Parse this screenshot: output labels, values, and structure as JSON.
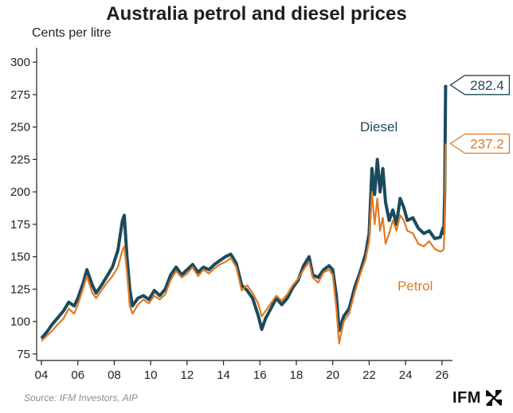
{
  "chart_data": {
    "type": "line",
    "title": "Australia petrol and diesel prices",
    "ylabel": "Cents per litre",
    "xlabel": "",
    "xlim": [
      2004,
      2026.4
    ],
    "ylim": [
      70,
      305
    ],
    "x_ticks": [
      2004,
      2006,
      2008,
      2010,
      2012,
      2014,
      2016,
      2018,
      2020,
      2022,
      2024,
      2026
    ],
    "x_tick_labels": [
      "04",
      "06",
      "08",
      "10",
      "12",
      "14",
      "16",
      "18",
      "20",
      "22",
      "24",
      "26"
    ],
    "y_ticks": [
      75,
      100,
      125,
      150,
      175,
      200,
      225,
      250,
      275,
      300
    ],
    "grid": false,
    "series": [
      {
        "name": "Diesel",
        "color": "#1b4a5c",
        "points": [
          [
            2004.0,
            87
          ],
          [
            2004.3,
            92
          ],
          [
            2004.6,
            98
          ],
          [
            2004.9,
            103
          ],
          [
            2005.2,
            108
          ],
          [
            2005.5,
            115
          ],
          [
            2005.8,
            112
          ],
          [
            2006.0,
            118
          ],
          [
            2006.3,
            130
          ],
          [
            2006.5,
            140
          ],
          [
            2006.8,
            128
          ],
          [
            2007.0,
            122
          ],
          [
            2007.3,
            128
          ],
          [
            2007.6,
            135
          ],
          [
            2007.9,
            142
          ],
          [
            2008.2,
            155
          ],
          [
            2008.45,
            178
          ],
          [
            2008.55,
            182
          ],
          [
            2008.7,
            150
          ],
          [
            2008.85,
            125
          ],
          [
            2009.0,
            112
          ],
          [
            2009.3,
            118
          ],
          [
            2009.6,
            120
          ],
          [
            2009.9,
            117
          ],
          [
            2010.2,
            124
          ],
          [
            2010.5,
            120
          ],
          [
            2010.8,
            125
          ],
          [
            2011.1,
            136
          ],
          [
            2011.4,
            142
          ],
          [
            2011.7,
            136
          ],
          [
            2012.0,
            140
          ],
          [
            2012.3,
            144
          ],
          [
            2012.6,
            138
          ],
          [
            2012.9,
            142
          ],
          [
            2013.2,
            140
          ],
          [
            2013.5,
            144
          ],
          [
            2013.8,
            147
          ],
          [
            2014.1,
            150
          ],
          [
            2014.4,
            152
          ],
          [
            2014.7,
            145
          ],
          [
            2015.0,
            128
          ],
          [
            2015.3,
            124
          ],
          [
            2015.6,
            118
          ],
          [
            2015.9,
            105
          ],
          [
            2016.1,
            94
          ],
          [
            2016.3,
            102
          ],
          [
            2016.6,
            110
          ],
          [
            2016.9,
            118
          ],
          [
            2017.2,
            113
          ],
          [
            2017.5,
            118
          ],
          [
            2017.8,
            126
          ],
          [
            2018.1,
            132
          ],
          [
            2018.4,
            143
          ],
          [
            2018.7,
            150
          ],
          [
            2018.9,
            136
          ],
          [
            2019.2,
            134
          ],
          [
            2019.5,
            140
          ],
          [
            2019.8,
            143
          ],
          [
            2020.0,
            140
          ],
          [
            2020.2,
            120
          ],
          [
            2020.35,
            93
          ],
          [
            2020.6,
            104
          ],
          [
            2020.9,
            110
          ],
          [
            2021.2,
            126
          ],
          [
            2021.5,
            138
          ],
          [
            2021.8,
            152
          ],
          [
            2022.0,
            168
          ],
          [
            2022.15,
            218
          ],
          [
            2022.3,
            198
          ],
          [
            2022.45,
            225
          ],
          [
            2022.6,
            200
          ],
          [
            2022.75,
            218
          ],
          [
            2022.9,
            192
          ],
          [
            2023.1,
            178
          ],
          [
            2023.3,
            186
          ],
          [
            2023.5,
            175
          ],
          [
            2023.7,
            195
          ],
          [
            2023.9,
            188
          ],
          [
            2024.1,
            178
          ],
          [
            2024.4,
            180
          ],
          [
            2024.7,
            172
          ],
          [
            2025.0,
            168
          ],
          [
            2025.3,
            170
          ],
          [
            2025.6,
            164
          ],
          [
            2025.9,
            165
          ],
          [
            2026.05,
            172
          ],
          [
            2026.1,
            168
          ],
          [
            2026.15,
            200
          ],
          [
            2026.2,
            282.4
          ]
        ]
      },
      {
        "name": "Petrol",
        "color": "#e07a25",
        "points": [
          [
            2004.0,
            85
          ],
          [
            2004.3,
            89
          ],
          [
            2004.6,
            93
          ],
          [
            2004.9,
            98
          ],
          [
            2005.2,
            102
          ],
          [
            2005.5,
            110
          ],
          [
            2005.8,
            106
          ],
          [
            2006.0,
            113
          ],
          [
            2006.3,
            126
          ],
          [
            2006.5,
            135
          ],
          [
            2006.8,
            122
          ],
          [
            2007.0,
            118
          ],
          [
            2007.3,
            124
          ],
          [
            2007.6,
            130
          ],
          [
            2007.9,
            135
          ],
          [
            2008.2,
            142
          ],
          [
            2008.45,
            155
          ],
          [
            2008.55,
            158
          ],
          [
            2008.7,
            138
          ],
          [
            2008.85,
            112
          ],
          [
            2009.0,
            106
          ],
          [
            2009.3,
            113
          ],
          [
            2009.6,
            117
          ],
          [
            2009.9,
            114
          ],
          [
            2010.2,
            120
          ],
          [
            2010.5,
            117
          ],
          [
            2010.8,
            121
          ],
          [
            2011.1,
            132
          ],
          [
            2011.4,
            139
          ],
          [
            2011.7,
            134
          ],
          [
            2012.0,
            137
          ],
          [
            2012.3,
            142
          ],
          [
            2012.6,
            135
          ],
          [
            2012.9,
            140
          ],
          [
            2013.2,
            137
          ],
          [
            2013.5,
            141
          ],
          [
            2013.8,
            144
          ],
          [
            2014.1,
            146
          ],
          [
            2014.4,
            149
          ],
          [
            2014.7,
            142
          ],
          [
            2015.0,
            124
          ],
          [
            2015.3,
            128
          ],
          [
            2015.6,
            122
          ],
          [
            2015.9,
            114
          ],
          [
            2016.1,
            104
          ],
          [
            2016.3,
            108
          ],
          [
            2016.6,
            114
          ],
          [
            2016.9,
            120
          ],
          [
            2017.2,
            116
          ],
          [
            2017.5,
            121
          ],
          [
            2017.8,
            128
          ],
          [
            2018.1,
            133
          ],
          [
            2018.4,
            140
          ],
          [
            2018.7,
            146
          ],
          [
            2018.9,
            134
          ],
          [
            2019.2,
            130
          ],
          [
            2019.5,
            138
          ],
          [
            2019.8,
            140
          ],
          [
            2020.0,
            136
          ],
          [
            2020.2,
            110
          ],
          [
            2020.35,
            83
          ],
          [
            2020.6,
            100
          ],
          [
            2020.9,
            106
          ],
          [
            2021.2,
            122
          ],
          [
            2021.5,
            136
          ],
          [
            2021.8,
            148
          ],
          [
            2022.0,
            162
          ],
          [
            2022.15,
            200
          ],
          [
            2022.3,
            175
          ],
          [
            2022.45,
            195
          ],
          [
            2022.6,
            170
          ],
          [
            2022.75,
            180
          ],
          [
            2022.9,
            160
          ],
          [
            2023.1,
            168
          ],
          [
            2023.3,
            178
          ],
          [
            2023.5,
            170
          ],
          [
            2023.7,
            182
          ],
          [
            2023.9,
            178
          ],
          [
            2024.1,
            170
          ],
          [
            2024.4,
            168
          ],
          [
            2024.7,
            160
          ],
          [
            2025.0,
            158
          ],
          [
            2025.3,
            162
          ],
          [
            2025.6,
            156
          ],
          [
            2025.9,
            154
          ],
          [
            2026.05,
            155
          ],
          [
            2026.1,
            156
          ],
          [
            2026.15,
            180
          ],
          [
            2026.2,
            237.2
          ]
        ]
      }
    ],
    "end_labels": [
      {
        "series": "Diesel",
        "value": "282.4",
        "y": 282.4
      },
      {
        "series": "Petrol",
        "value": "237.2",
        "y": 237.2
      }
    ],
    "annotations": [
      {
        "text": "Diesel",
        "series": "Diesel"
      },
      {
        "text": "Petrol",
        "series": "Petrol"
      }
    ]
  },
  "footer": {
    "source": "Source: IFM Investors, AIP",
    "logo_text": "IFM"
  }
}
